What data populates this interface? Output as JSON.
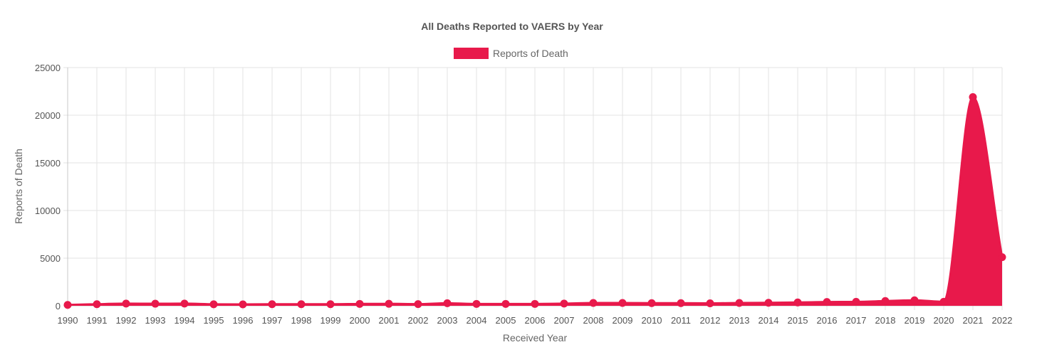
{
  "chart_data": {
    "type": "area",
    "title": "All Deaths Reported to VAERS by Year",
    "xlabel": "Received Year",
    "ylabel": "Reports of Death",
    "ylim": [
      0,
      25000
    ],
    "yticks": [
      "0",
      "5000",
      "10000",
      "15000",
      "20000",
      "25000"
    ],
    "grid": true,
    "legend_position": "top-center",
    "categories": [
      "1990",
      "1991",
      "1992",
      "1993",
      "1994",
      "1995",
      "1996",
      "1997",
      "1998",
      "1999",
      "2000",
      "2001",
      "2002",
      "2003",
      "2004",
      "2005",
      "2006",
      "2007",
      "2008",
      "2009",
      "2010",
      "2011",
      "2012",
      "2013",
      "2014",
      "2015",
      "2016",
      "2017",
      "2018",
      "2019",
      "2020",
      "2021",
      "2022"
    ],
    "series": [
      {
        "name": "Reports of Death",
        "color": "#e8194b",
        "values": [
          90,
          170,
          230,
          220,
          230,
          160,
          150,
          170,
          170,
          170,
          200,
          210,
          180,
          270,
          200,
          200,
          200,
          230,
          300,
          300,
          280,
          280,
          260,
          300,
          320,
          350,
          400,
          420,
          500,
          580,
          420,
          21900,
          5100
        ]
      }
    ]
  }
}
